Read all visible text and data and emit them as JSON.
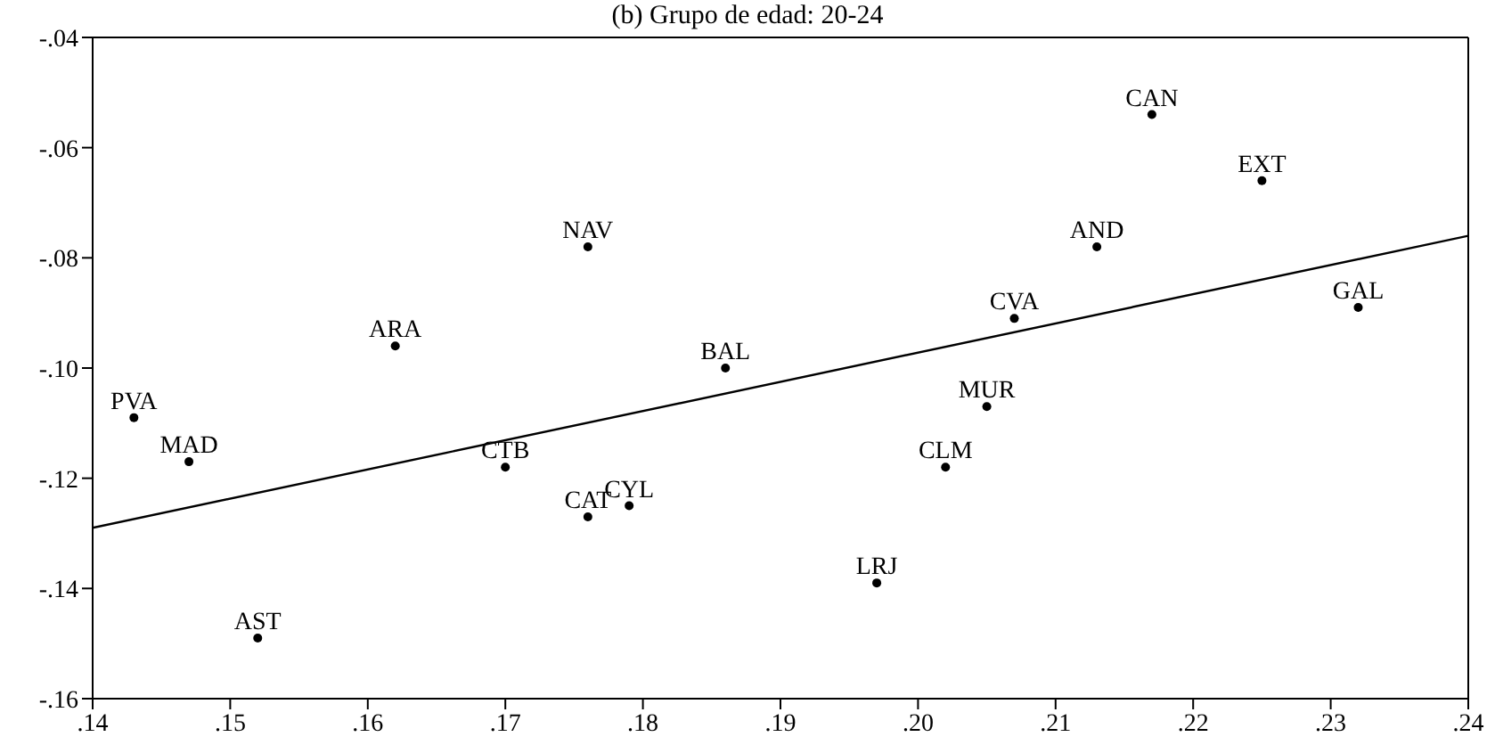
{
  "chart_data": {
    "type": "scatter",
    "title": "(b) Grupo de edad: 20-24",
    "series": [
      {
        "color": "#000000",
        "marker": "circle",
        "x": [
          0.143,
          0.147,
          0.152,
          0.162,
          0.17,
          0.176,
          0.176,
          0.179,
          0.186,
          0.197,
          0.202,
          0.205,
          0.207,
          0.213,
          0.217,
          0.225,
          0.232
        ],
        "values": [
          -0.109,
          -0.117,
          -0.149,
          -0.096,
          -0.118,
          -0.078,
          -0.127,
          -0.125,
          -0.1,
          -0.139,
          -0.118,
          -0.107,
          -0.091,
          -0.078,
          -0.054,
          -0.066,
          -0.089
        ]
      },
      {
        "type": "line",
        "color": "#000000",
        "marker": "none",
        "x": [
          0.14,
          0.24
        ],
        "values": [
          -0.129,
          -0.076
        ]
      }
    ],
    "annotations": [
      {
        "text": "PVA",
        "x": 0.143,
        "y": -0.109
      },
      {
        "text": "MAD",
        "x": 0.147,
        "y": -0.117
      },
      {
        "text": "AST",
        "x": 0.152,
        "y": -0.149
      },
      {
        "text": "ARA",
        "x": 0.162,
        "y": -0.096
      },
      {
        "text": "CTB",
        "x": 0.17,
        "y": -0.118
      },
      {
        "text": "NAV",
        "x": 0.176,
        "y": -0.078
      },
      {
        "text": "CAT",
        "x": 0.176,
        "y": -0.127
      },
      {
        "text": "CYL",
        "x": 0.179,
        "y": -0.125
      },
      {
        "text": "BAL",
        "x": 0.186,
        "y": -0.1
      },
      {
        "text": "LRJ",
        "x": 0.197,
        "y": -0.139
      },
      {
        "text": "CLM",
        "x": 0.202,
        "y": -0.118
      },
      {
        "text": "MUR",
        "x": 0.205,
        "y": -0.107
      },
      {
        "text": "CVA",
        "x": 0.207,
        "y": -0.091
      },
      {
        "text": "AND",
        "x": 0.213,
        "y": -0.078
      },
      {
        "text": "CAN",
        "x": 0.217,
        "y": -0.054
      },
      {
        "text": "EXT",
        "x": 0.225,
        "y": -0.066
      },
      {
        "text": "GAL",
        "x": 0.232,
        "y": -0.089
      }
    ],
    "xlim": [
      0.14,
      0.24
    ],
    "xticks": [
      {
        "value": 0.14,
        "label": ".14"
      },
      {
        "value": 0.15,
        "label": ".15"
      },
      {
        "value": 0.16,
        "label": ".16"
      },
      {
        "value": 0.17,
        "label": ".17"
      },
      {
        "value": 0.18,
        "label": ".18"
      },
      {
        "value": 0.19,
        "label": ".19"
      },
      {
        "value": 0.2,
        "label": ".20"
      },
      {
        "value": 0.21,
        "label": ".21"
      },
      {
        "value": 0.22,
        "label": ".22"
      },
      {
        "value": 0.23,
        "label": ".23"
      },
      {
        "value": 0.24,
        "label": ".24"
      }
    ],
    "ylim": [
      -0.16,
      -0.04
    ],
    "yticks": [
      {
        "value": -0.16,
        "label": "-.16"
      },
      {
        "value": -0.14,
        "label": "-.14"
      },
      {
        "value": -0.12,
        "label": "-.12"
      },
      {
        "value": -0.1,
        "label": "-.10"
      },
      {
        "value": -0.08,
        "label": "-.08"
      },
      {
        "value": -0.06,
        "label": "-.06"
      },
      {
        "value": -0.04,
        "label": "-.04"
      }
    ],
    "grid": false,
    "legend": false
  }
}
